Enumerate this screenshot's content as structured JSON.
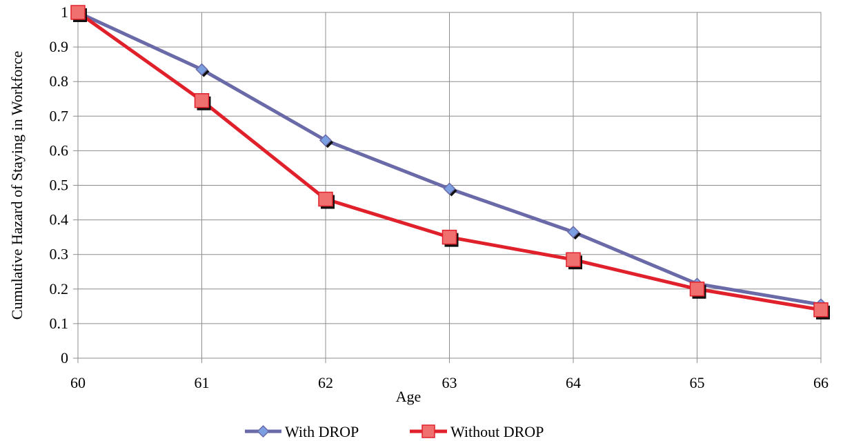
{
  "chart_data": {
    "type": "line",
    "title": "",
    "xlabel": "Age",
    "ylabel": "Cumulative Hazard of Staying in Workforce",
    "x": [
      60,
      61,
      62,
      63,
      64,
      65,
      66
    ],
    "x_tick_labels": [
      "60",
      "61",
      "62",
      "63",
      "64",
      "65",
      "66"
    ],
    "xlim": [
      60,
      66
    ],
    "ylim": [
      0,
      1
    ],
    "y_ticks": [
      0,
      0.1,
      0.2,
      0.3,
      0.4,
      0.5,
      0.6,
      0.7,
      0.8,
      0.9,
      1
    ],
    "y_tick_labels": [
      "0",
      "0.1",
      "0.2",
      "0.3",
      "0.4",
      "0.5",
      "0.6",
      "0.7",
      "0.8",
      "0.9",
      "1"
    ],
    "grid": true,
    "legend_position": "bottom",
    "series": [
      {
        "name": "With DROP",
        "values": [
          1.0,
          0.835,
          0.63,
          0.49,
          0.365,
          0.215,
          0.155
        ],
        "line_color": "#6a6aa8",
        "marker": "diamond",
        "marker_color": "#7b9fe0"
      },
      {
        "name": "Without DROP",
        "values": [
          1.0,
          0.745,
          0.46,
          0.35,
          0.285,
          0.2,
          0.14
        ],
        "line_color": "#e0202a",
        "marker": "square",
        "marker_color": "#f07070"
      }
    ]
  }
}
